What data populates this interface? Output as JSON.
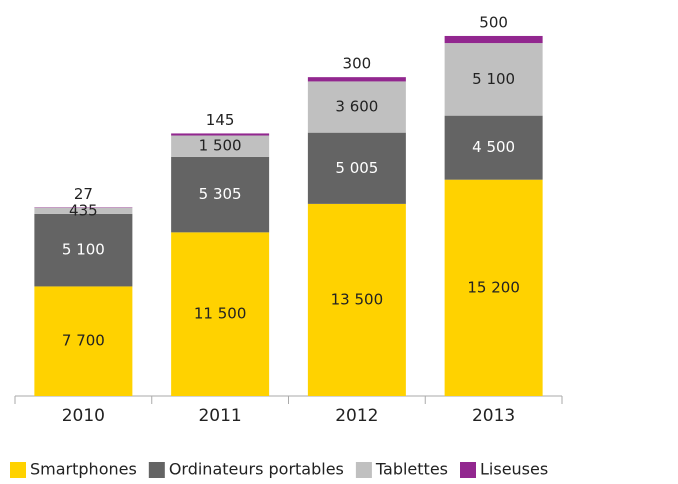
{
  "chart_data": {
    "type": "bar",
    "stacked": true,
    "categories": [
      "2010",
      "2011",
      "2012",
      "2013"
    ],
    "ylim": [
      0,
      26000
    ],
    "series": [
      {
        "name": "Smartphones",
        "color": "#ffd200",
        "values": [
          7700,
          11500,
          13500,
          15200
        ],
        "value_labels": [
          "7 700",
          "11 500",
          "13 500",
          "15 200"
        ]
      },
      {
        "name": "Ordinateurs portables",
        "color": "#646464",
        "values": [
          5100,
          5305,
          5005,
          4500
        ],
        "value_labels": [
          "5 100",
          "5 305",
          "5 005",
          "4 500"
        ]
      },
      {
        "name": "Tablettes",
        "color": "#c0c0c0",
        "values": [
          435,
          1500,
          3600,
          5100
        ],
        "value_labels": [
          "435",
          "1 500",
          "3 600",
          "5 100"
        ]
      },
      {
        "name": "Liseuses",
        "color": "#92278f",
        "values": [
          27,
          145,
          300,
          500
        ]
      }
    ],
    "legend": "bottom"
  }
}
